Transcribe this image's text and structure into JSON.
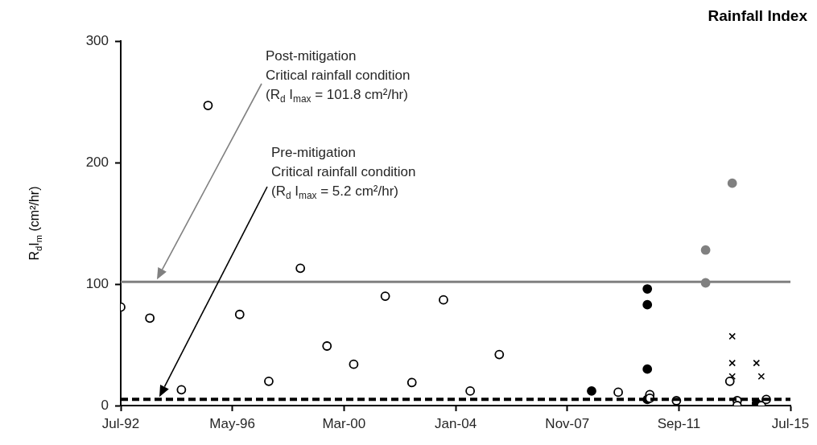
{
  "chart_data": {
    "type": "scatter",
    "title": "Rainfall Index",
    "ylabel": "R$_{d}$I$_{m}$ (cm²/hr)",
    "xlim": [
      "1992-07",
      "2015-07"
    ],
    "xticks": [
      {
        "value": "1992-07",
        "label": "Jul-92"
      },
      {
        "value": "1996-05",
        "label": "May-96"
      },
      {
        "value": "2000-03",
        "label": "Mar-00"
      },
      {
        "value": "2004-01",
        "label": "Jan-04"
      },
      {
        "value": "2007-11",
        "label": "Nov-07"
      },
      {
        "value": "2011-09",
        "label": "Sep-11"
      },
      {
        "value": "2015-07",
        "label": "Jul-15"
      }
    ],
    "ylim": [
      0,
      300
    ],
    "yticks": [
      0,
      100,
      200,
      300
    ],
    "grid": false,
    "legend": false,
    "series": [
      {
        "marker": "circle",
        "x": [
          "1992-07",
          "1993-07",
          "1994-08",
          "1995-07",
          "1996-08",
          "1997-08",
          "1998-09",
          "1999-08",
          "2000-07",
          "2001-08",
          "2002-07",
          "2003-08",
          "2004-07",
          "2005-07",
          "2009-08",
          "2010-09",
          "2010-09",
          "2011-08",
          "2013-06",
          "2013-09",
          "2013-09",
          "2014-07",
          "2014-09"
        ],
        "values": [
          81,
          72,
          13,
          247,
          75,
          20,
          113,
          49,
          34,
          90,
          19,
          87,
          12,
          42,
          11,
          9,
          6,
          4,
          20,
          4,
          0,
          0,
          5
        ]
      },
      {
        "marker": "circle",
        "color": "#000000",
        "x": [
          "2008-09",
          "2010-08",
          "2010-08",
          "2010-08",
          "2010-08",
          "2014-05"
        ],
        "values": [
          12,
          96,
          83,
          30,
          5,
          2
        ]
      },
      {
        "marker": "circle",
        "color": "#808080",
        "x": [
          "2012-08",
          "2012-08",
          "2013-07"
        ],
        "values": [
          128,
          101,
          183
        ]
      },
      {
        "marker": "cross",
        "color": "#000000",
        "x": [
          "2013-07",
          "2013-07",
          "2013-07",
          "2014-05",
          "2014-07"
        ],
        "values": [
          57,
          35,
          24,
          35,
          24
        ]
      }
    ],
    "ref_lines": [
      {
        "axis": "y",
        "value": 101.8,
        "color": "#808080",
        "line_style": "solid"
      },
      {
        "axis": "y",
        "value": 5.2,
        "color": "#000000",
        "line_style": "dashed"
      }
    ],
    "annotations": [
      "Post-mitigation\nCritical rainfall condition\n(R$_{d}$ I$_{max}$ = 101.8 cm²/hr)",
      "Pre-mitigation\nCritical rainfall condition\n(R$_{d}$ I$_{max}$ = 5.2 cm²/hr)"
    ]
  }
}
